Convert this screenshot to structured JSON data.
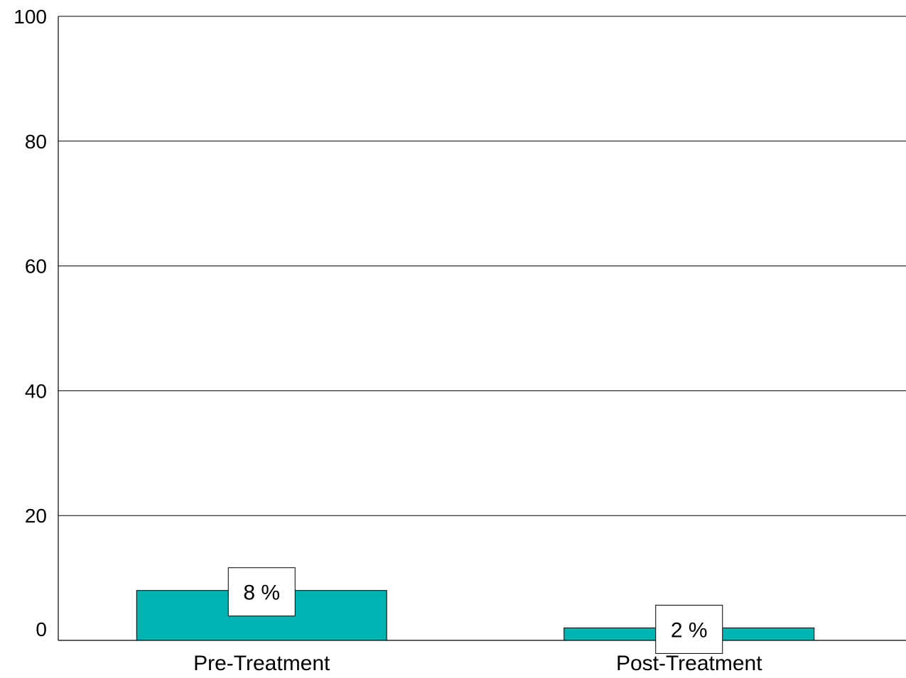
{
  "chart_data": {
    "type": "bar",
    "categories": [
      "Pre-Treatment",
      "Post-Treatment"
    ],
    "values": [
      8,
      2
    ],
    "data_labels": [
      "8 %",
      "2 %"
    ],
    "ylim": [
      0,
      100
    ],
    "yticks": [
      0,
      20,
      40,
      60,
      80,
      100
    ],
    "ytick_labels": [
      "0",
      "20",
      "40",
      "60",
      "80",
      "100"
    ],
    "grid": true,
    "bar_color": "#00b3b3",
    "title": "",
    "xlabel": "",
    "ylabel": ""
  }
}
